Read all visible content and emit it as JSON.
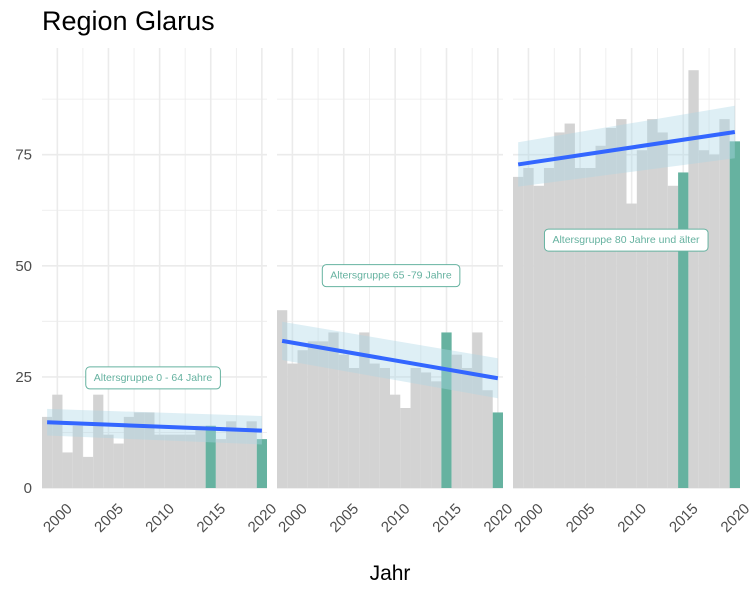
{
  "chart_data": {
    "type": "bar",
    "title": "Region Glarus",
    "xlabel": "Jahr",
    "ylabel": "",
    "x_range": [
      1999,
      2020
    ],
    "x_ticks": [
      "2000",
      "2005",
      "2010",
      "2015",
      "2020"
    ],
    "y_ticks": [
      "0",
      "25",
      "50",
      "75"
    ],
    "ylim": [
      0,
      99
    ],
    "grid": true,
    "colors": {
      "bar": "#d3d3d3",
      "highlight_bar": "#66b2a0",
      "trend_line": "#3366ff",
      "confidence_band": "#add8e6",
      "label_border": "#66b2a0",
      "label_text": "#66b2a0",
      "grid": "#ebebeb"
    },
    "highlighted_years": [
      2015,
      2020
    ],
    "panels": [
      {
        "label": "Altersgruppe 0 - 64 Jahre",
        "years": [
          1999,
          2000,
          2001,
          2002,
          2003,
          2004,
          2005,
          2006,
          2007,
          2008,
          2009,
          2010,
          2011,
          2012,
          2013,
          2014,
          2015,
          2016,
          2017,
          2018,
          2019,
          2020
        ],
        "values": [
          16,
          21,
          8,
          14,
          7,
          21,
          12,
          10,
          16,
          17,
          17,
          12,
          12,
          12,
          12,
          14,
          14,
          11,
          15,
          13,
          15,
          11
        ],
        "trend": {
          "start": 14.8,
          "end": 12.9
        },
        "ci_start": [
          11.8,
          17.8
        ],
        "ci_end": [
          9.8,
          16.2
        ]
      },
      {
        "label": "Altersgruppe 65 -79 Jahre",
        "years": [
          1999,
          2000,
          2001,
          2002,
          2003,
          2004,
          2005,
          2006,
          2007,
          2008,
          2009,
          2010,
          2011,
          2012,
          2013,
          2014,
          2015,
          2016,
          2017,
          2018,
          2019,
          2020
        ],
        "values": [
          40,
          28,
          31,
          33,
          33,
          35,
          30,
          27,
          35,
          28,
          27,
          21,
          18,
          27,
          26,
          24,
          35,
          30,
          27,
          35,
          22,
          17
        ],
        "trend": {
          "start": 33.1,
          "end": 24.7
        },
        "ci_start": [
          28.8,
          37.4
        ],
        "ci_end": [
          20.2,
          29.2
        ]
      },
      {
        "label": "Altersgruppe 80 Jahre und älter",
        "years": [
          1999,
          2000,
          2001,
          2002,
          2003,
          2004,
          2005,
          2006,
          2007,
          2008,
          2009,
          2010,
          2011,
          2012,
          2013,
          2014,
          2015,
          2016,
          2017,
          2018,
          2019,
          2020
        ],
        "values": [
          70,
          72,
          68,
          72,
          80,
          82,
          72,
          72,
          77,
          81,
          83,
          64,
          76,
          83,
          80,
          68,
          71,
          94,
          76,
          75,
          83,
          78
        ],
        "trend": {
          "start": 72.8,
          "end": 80.1
        },
        "ci_start": [
          67.8,
          77.8
        ],
        "ci_end": [
          74.2,
          86.0
        ]
      }
    ]
  }
}
